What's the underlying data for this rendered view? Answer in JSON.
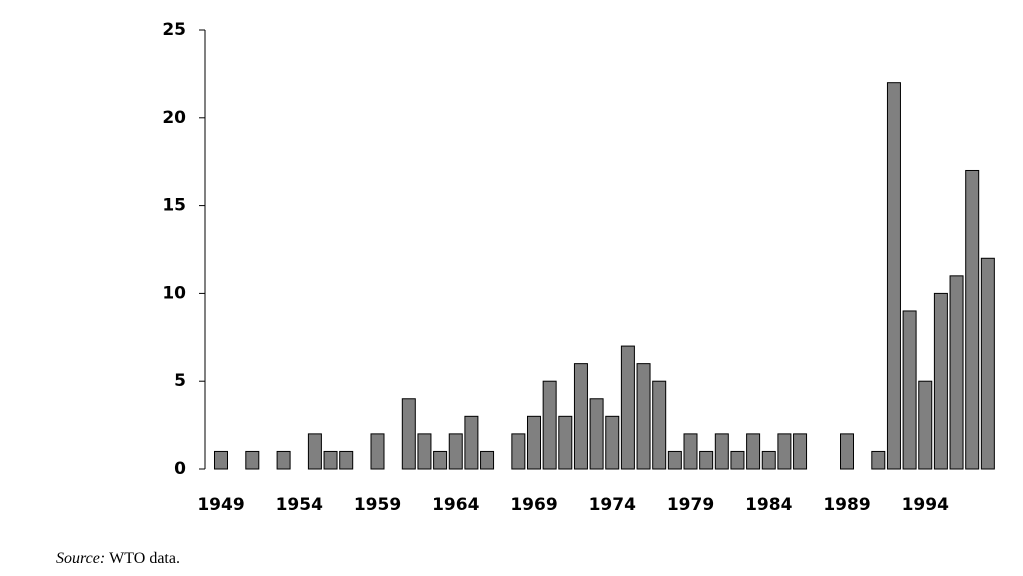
{
  "chart_data": {
    "type": "bar",
    "categories": [
      "1949",
      null,
      null,
      null,
      null,
      "1954",
      null,
      null,
      null,
      null,
      "1959",
      null,
      null,
      null,
      null,
      "1964",
      null,
      null,
      null,
      null,
      "1969",
      null,
      null,
      null,
      null,
      "1974",
      null,
      null,
      null,
      null,
      "1979",
      null,
      null,
      null,
      null,
      "1984",
      null,
      null,
      null,
      null,
      "1989",
      null,
      null,
      null,
      null,
      "1994",
      null,
      null,
      null,
      null
    ],
    "values": [
      1,
      0,
      1,
      0,
      1,
      0,
      2,
      1,
      1,
      0,
      2,
      0,
      4,
      2,
      1,
      2,
      3,
      1,
      0,
      2,
      3,
      5,
      3,
      6,
      4,
      3,
      7,
      6,
      5,
      1,
      2,
      1,
      2,
      1,
      2,
      1,
      2,
      2,
      0,
      0,
      2,
      0,
      1,
      22,
      9,
      5,
      10,
      11,
      17,
      12
    ],
    "color": "#808080",
    "ylim": [
      0,
      25
    ],
    "yticks": [
      0,
      5,
      10,
      15,
      20,
      25
    ],
    "grid": false,
    "source_label": "Source:",
    "source": "WTO data."
  }
}
